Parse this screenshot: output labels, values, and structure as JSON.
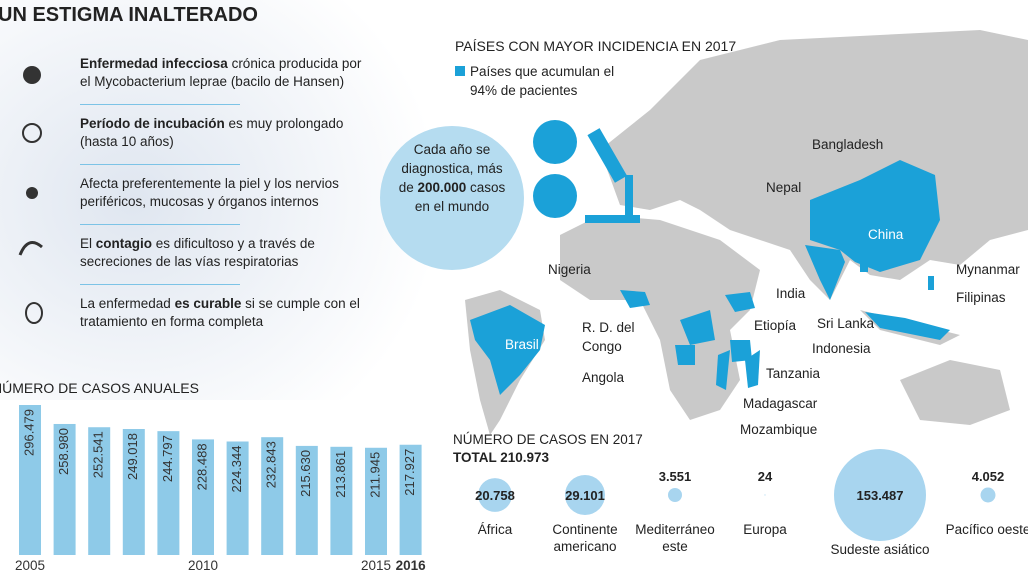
{
  "title": "UN ESTIGMA INALTERADO",
  "facts": [
    {
      "parts": [
        {
          "text": "Enfermedad infecciosa",
          "bold": true
        },
        {
          "text": " crónica producida por el Mycobacterium leprae (bacilo de Hansen)"
        }
      ]
    },
    {
      "parts": [
        {
          "text": "Período de incubación",
          "bold": true
        },
        {
          "text": " es muy prolongado (hasta 10 años)"
        }
      ]
    },
    {
      "parts": [
        {
          "text": "Afecta preferentemente la piel y los nervios periféricos, mucosas y órganos internos"
        }
      ]
    },
    {
      "parts": [
        {
          "text": "El "
        },
        {
          "text": "contagio",
          "bold": true
        },
        {
          "text": " es dificultoso y a través de secreciones de las vías respiratorias"
        }
      ]
    },
    {
      "parts": [
        {
          "text": "La enfermedad "
        },
        {
          "text": "es curable",
          "bold": true
        },
        {
          "text": " si se cumple con el tratamiento en forma completa"
        }
      ]
    }
  ],
  "map": {
    "title": "PAÍSES CON MAYOR INCIDENCIA EN 2017",
    "legend": "Países que acumulan el 94% de pacientes",
    "legend_color": "#1ba1d8",
    "callout": {
      "parts": [
        {
          "text": "Cada año se diagnostica, más de "
        },
        {
          "text": "200.000",
          "bold": true
        },
        {
          "text": " casos en el mundo"
        }
      ]
    },
    "countries": [
      "Bangladesh",
      "Nepal",
      "China",
      "Nigeria",
      "India",
      "Mynanmar",
      "Filipinas",
      "R. D. del Congo",
      "Etiopía",
      "Sri Lanka",
      "Indonesia",
      "Brasil",
      "Angola",
      "Tanzania",
      "Madagascar",
      "Mozambique"
    ]
  },
  "chart_data": [
    {
      "type": "bar",
      "title": "NÚMERO DE CASOS ANUALES",
      "categories": [
        "2005",
        null,
        null,
        null,
        null,
        "2010",
        null,
        null,
        null,
        null,
        "2015",
        "2016"
      ],
      "values": [
        296479,
        258980,
        252541,
        249018,
        244797,
        228488,
        224344,
        232843,
        215630,
        213861,
        211945,
        217927
      ],
      "value_labels": [
        "296.479",
        "258.980",
        "252.541",
        "249.018",
        "244.797",
        "228.488",
        "224.344",
        "232.843",
        "215.630",
        "213.861",
        "211.945",
        "217.927"
      ],
      "color": "#8ecae8"
    },
    {
      "type": "bubble",
      "title": "NÚMERO DE CASOS EN 2017",
      "subtitle": "TOTAL 210.973",
      "categories": [
        "África",
        "Continente americano",
        "Mediterráneo este",
        "Europa",
        "Sudeste asiático",
        "Pacífico oeste"
      ],
      "values": [
        20758,
        29101,
        3551,
        24,
        153487,
        4052
      ],
      "value_labels": [
        "20.758",
        "29.101",
        "3.551",
        "24",
        "153.487",
        "4.052"
      ],
      "color": "#a8d5ef"
    }
  ]
}
